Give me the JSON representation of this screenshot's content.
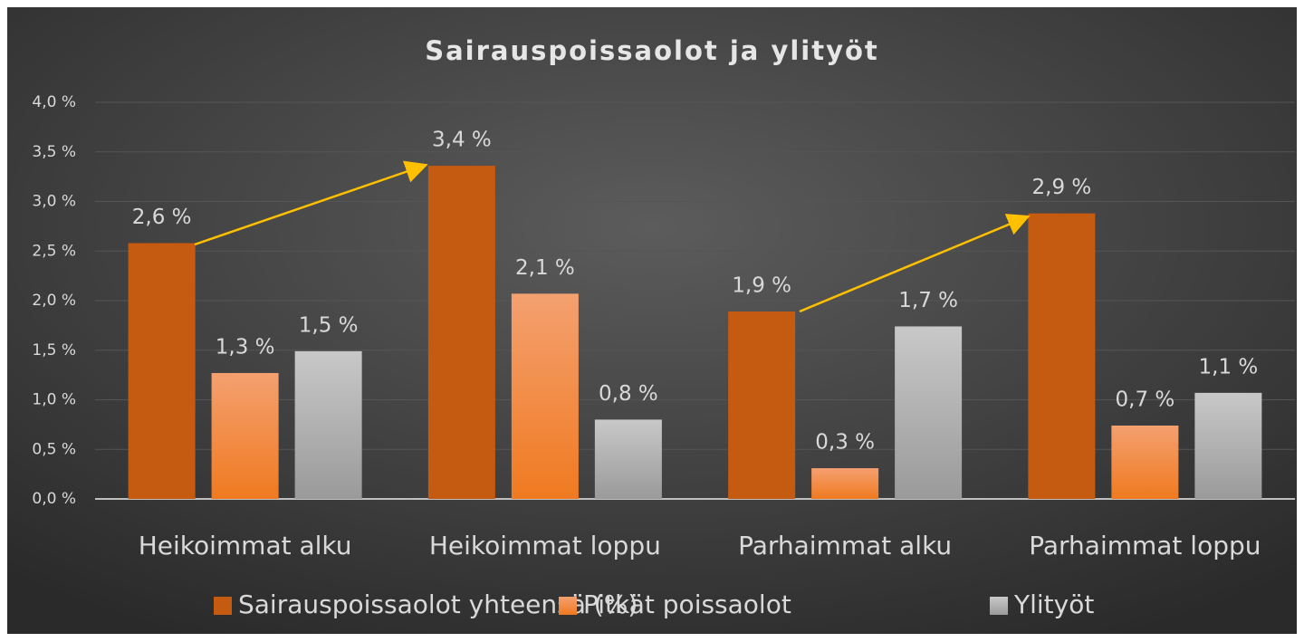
{
  "chart_data": {
    "type": "bar",
    "title": "Sairauspoissaolot ja ylityöt",
    "categories": [
      "Heikoimmat alku",
      "Heikoimmat loppu",
      "Parhaimmat alku",
      "Parhaimmat loppu"
    ],
    "series": [
      {
        "name": "Sairauspoissaolot yhteensä (%)",
        "color": "#c55a11",
        "values": [
          2.58,
          3.36,
          1.89,
          2.88
        ],
        "value_labels": [
          "2,6 %",
          "3,4 %",
          "1,9 %",
          "2,9 %"
        ]
      },
      {
        "name": "Pitkät poissaolot",
        "color": "#f07a20",
        "values": [
          1.27,
          2.07,
          0.31,
          0.74
        ],
        "value_labels": [
          "1,3 %",
          "2,1 %",
          "0,3 %",
          "0,7 %"
        ]
      },
      {
        "name": "Ylityöt",
        "color": "#b0b0b0",
        "values": [
          1.49,
          0.8,
          1.74,
          1.07
        ],
        "value_labels": [
          "1,5 %",
          "0,8 %",
          "1,7 %",
          "1,1 %"
        ]
      }
    ],
    "ylim": [
      0,
      4
    ],
    "yticks": [
      {
        "value": 0,
        "label": "0,0 %"
      },
      {
        "value": 0.5,
        "label": "0,5 %"
      },
      {
        "value": 1,
        "label": "1,0 %"
      },
      {
        "value": 1.5,
        "label": "1,5 %"
      },
      {
        "value": 2,
        "label": "2,0 %"
      },
      {
        "value": 2.5,
        "label": "2,5 %"
      },
      {
        "value": 3,
        "label": "3,0 %"
      },
      {
        "value": 3.5,
        "label": "3,5 %"
      },
      {
        "value": 4,
        "label": "4,0 %"
      }
    ],
    "grid": true
  }
}
